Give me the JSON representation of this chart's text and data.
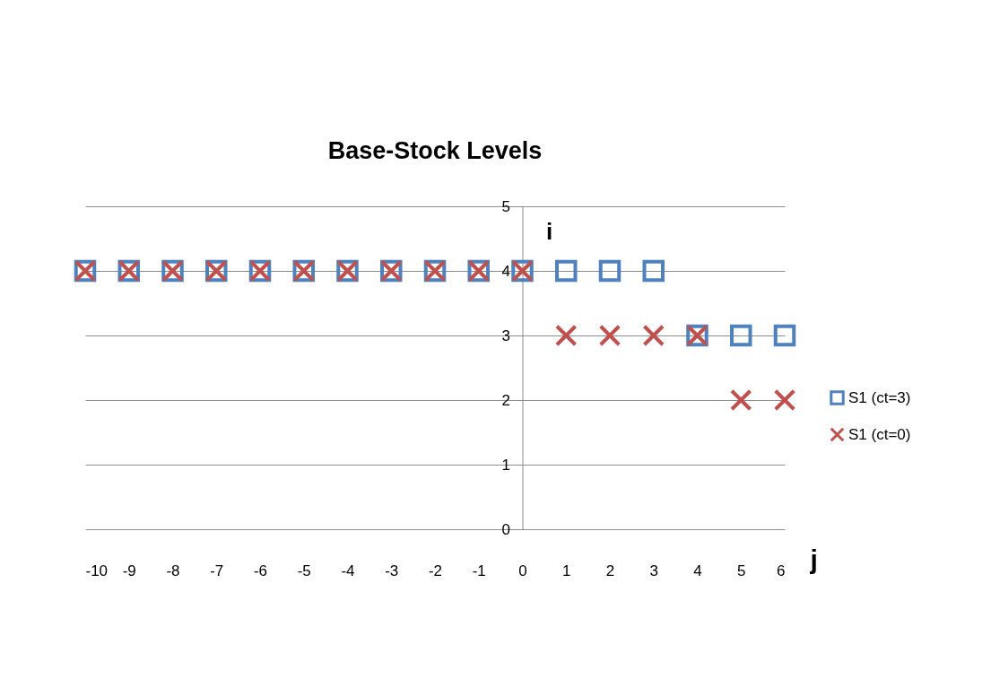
{
  "chart_data": {
    "type": "scatter",
    "title": "Base-Stock Levels",
    "xlabel": "j",
    "ylabel": "i",
    "x": [
      -10,
      -9,
      -8,
      -7,
      -6,
      -5,
      -4,
      -3,
      -2,
      -1,
      0,
      1,
      2,
      3,
      4,
      5,
      6
    ],
    "series": [
      {
        "name": "S1 (ct=3)",
        "color": "#4f81bd",
        "marker": "square",
        "values": [
          4,
          4,
          4,
          4,
          4,
          4,
          4,
          4,
          4,
          4,
          4,
          4,
          4,
          4,
          3,
          3,
          3
        ]
      },
      {
        "name": "S1 (ct=0)",
        "color": "#c0504d",
        "marker": "cross",
        "values": [
          4,
          4,
          4,
          4,
          4,
          4,
          4,
          4,
          4,
          4,
          4,
          3,
          3,
          3,
          3,
          2,
          2
        ]
      }
    ],
    "xlim": [
      -10,
      6
    ],
    "xticks": [
      -10,
      -9,
      -8,
      -7,
      -6,
      -5,
      -4,
      -3,
      -2,
      -1,
      0,
      1,
      2,
      3,
      4,
      5,
      6
    ],
    "ylim": [
      0,
      5
    ],
    "yticks": [
      0,
      1,
      2,
      3,
      4,
      5
    ],
    "grid": "y",
    "legend": "right"
  }
}
